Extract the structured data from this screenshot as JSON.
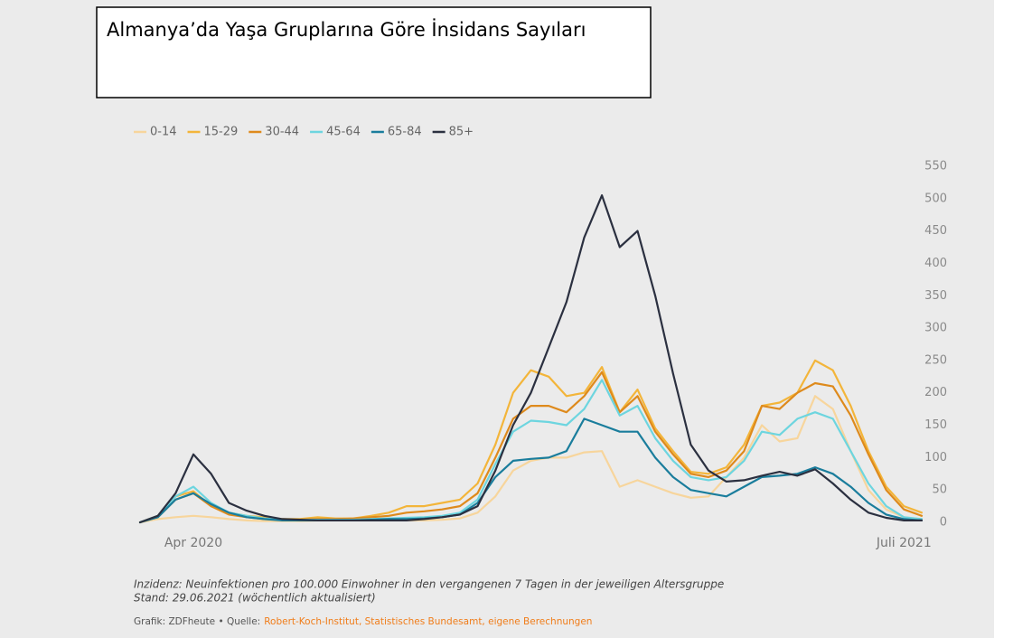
{
  "chart_data": {
    "type": "line",
    "title": "Almanya’da Yaşa Gruplarına Göre İnsidans Sayıları",
    "categories": [
      null,
      null,
      null,
      "Apr 2020",
      null,
      null,
      null,
      null,
      null,
      null,
      null,
      null,
      null,
      null,
      null,
      null,
      null,
      null,
      null,
      null,
      null,
      null,
      null,
      null,
      null,
      null,
      null,
      null,
      null,
      null,
      null,
      null,
      null,
      null,
      null,
      null,
      null,
      null,
      null,
      null,
      null,
      null,
      null,
      "Juli 2021",
      null
    ],
    "series": [
      {
        "name": "0-14",
        "color": "#f7d59c",
        "values": [
          0,
          5,
          8,
          10,
          8,
          5,
          3,
          2,
          2,
          2,
          3,
          3,
          3,
          3,
          3,
          3,
          3,
          4,
          6,
          15,
          40,
          80,
          95,
          100,
          100,
          108,
          110,
          55,
          65,
          55,
          45,
          38,
          40,
          70,
          100,
          150,
          125,
          130,
          195,
          175,
          110,
          50,
          20,
          8,
          5
        ]
      },
      {
        "name": "15-29",
        "color": "#f3b53a",
        "values": [
          0,
          10,
          40,
          48,
          25,
          15,
          10,
          8,
          5,
          5,
          8,
          6,
          6,
          10,
          15,
          25,
          25,
          30,
          35,
          60,
          120,
          200,
          235,
          225,
          195,
          200,
          240,
          170,
          205,
          145,
          110,
          78,
          75,
          85,
          120,
          180,
          185,
          200,
          250,
          235,
          180,
          110,
          55,
          25,
          15
        ]
      },
      {
        "name": "30-44",
        "color": "#de8a1c",
        "values": [
          0,
          8,
          35,
          45,
          25,
          12,
          8,
          5,
          4,
          4,
          5,
          5,
          6,
          8,
          10,
          15,
          17,
          20,
          25,
          45,
          100,
          160,
          180,
          180,
          170,
          195,
          232,
          170,
          195,
          140,
          105,
          75,
          70,
          80,
          110,
          180,
          175,
          200,
          215,
          210,
          165,
          105,
          50,
          20,
          10
        ]
      },
      {
        "name": "45-64",
        "color": "#6dd5df",
        "values": [
          0,
          10,
          40,
          55,
          30,
          15,
          10,
          6,
          4,
          4,
          4,
          4,
          4,
          5,
          6,
          7,
          8,
          10,
          15,
          35,
          90,
          140,
          157,
          155,
          150,
          175,
          220,
          165,
          180,
          130,
          95,
          70,
          65,
          70,
          95,
          140,
          135,
          160,
          170,
          160,
          110,
          60,
          25,
          8,
          5
        ]
      },
      {
        "name": "65-84",
        "color": "#1a7d9c",
        "values": [
          0,
          8,
          35,
          45,
          28,
          15,
          8,
          5,
          3,
          3,
          3,
          3,
          3,
          4,
          5,
          5,
          6,
          8,
          12,
          30,
          70,
          95,
          98,
          100,
          110,
          160,
          150,
          140,
          140,
          100,
          70,
          50,
          45,
          40,
          55,
          70,
          72,
          75,
          85,
          75,
          55,
          30,
          12,
          5,
          3
        ]
      },
      {
        "name": "85+",
        "color": "#2b3040",
        "values": [
          0,
          10,
          45,
          105,
          75,
          30,
          18,
          10,
          5,
          4,
          3,
          3,
          3,
          3,
          3,
          3,
          5,
          8,
          12,
          25,
          80,
          150,
          200,
          270,
          340,
          440,
          505,
          425,
          450,
          350,
          230,
          120,
          80,
          63,
          65,
          72,
          78,
          72,
          82,
          60,
          35,
          15,
          7,
          3,
          3
        ]
      }
    ],
    "ylim": [
      0,
      550
    ],
    "yticks": [
      0,
      50,
      100,
      150,
      200,
      250,
      300,
      350,
      400,
      450,
      500,
      550
    ],
    "grid": false,
    "notes": [
      "Inzidenz: Neuinfektionen pro 100.000 Einwohner in den vergangenen 7 Tagen in der jeweiligen Altersgruppe",
      "Stand: 29.06.2021 (wöchentlich aktualisiert)"
    ],
    "credit": "Grafik: ZDFheute • Quelle:",
    "source": "Robert-Koch-Institut, Statistisches Bundesamt, eigene Berechnungen"
  }
}
